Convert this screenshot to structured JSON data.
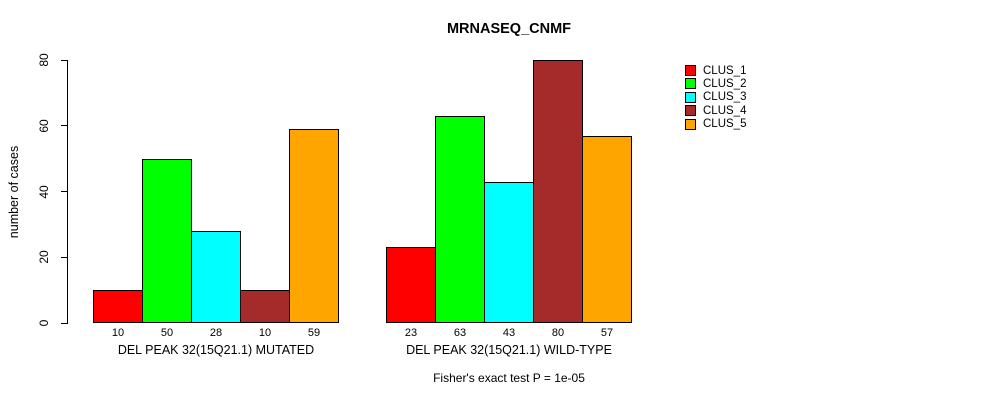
{
  "chart_data": {
    "type": "bar",
    "title": "MRNASEQ_CNMF",
    "ylabel": "number of cases",
    "xlabel": "",
    "ylim": [
      0,
      80
    ],
    "yticks": [
      0,
      20,
      40,
      60,
      80
    ],
    "grid": false,
    "legend_position": "top-right-outside",
    "bar_border_color": "#000000",
    "background_color": "#ffffff",
    "categories": [
      "DEL PEAK 32(15Q21.1) MUTATED",
      "DEL PEAK 32(15Q21.1) WILD-TYPE"
    ],
    "series": [
      {
        "name": "CLUS_1",
        "color": "#FF0000",
        "values": [
          10,
          23
        ]
      },
      {
        "name": "CLUS_2",
        "color": "#00FF00",
        "values": [
          50,
          63
        ]
      },
      {
        "name": "CLUS_3",
        "color": "#00FFFF",
        "values": [
          28,
          43
        ]
      },
      {
        "name": "CLUS_4",
        "color": "#A52A2A",
        "values": [
          10,
          80
        ]
      },
      {
        "name": "CLUS_5",
        "color": "#FFA500",
        "values": [
          59,
          57
        ]
      }
    ],
    "annotation": "Fisher's exact test P = 1e-05"
  }
}
